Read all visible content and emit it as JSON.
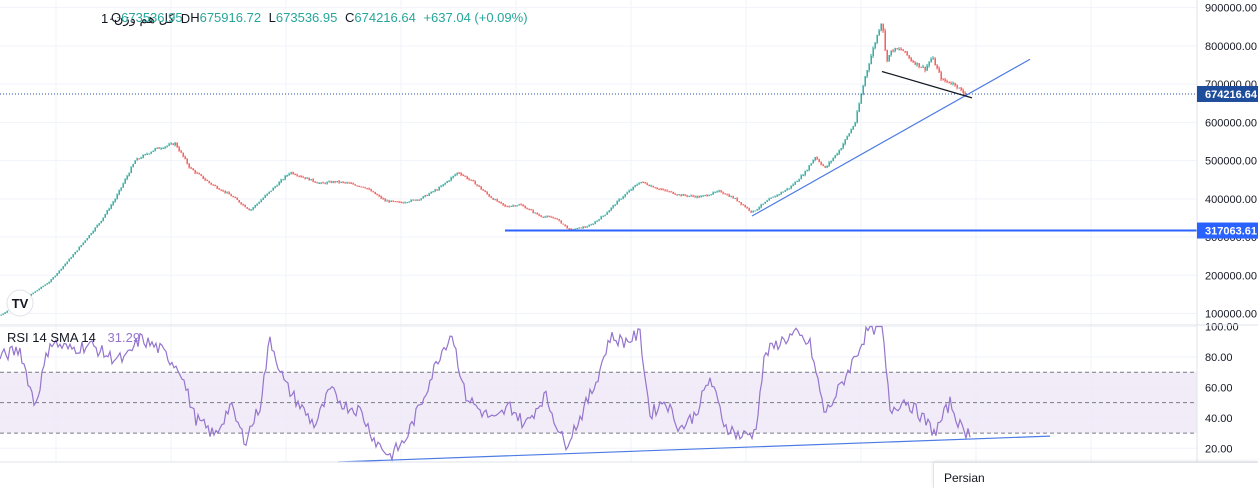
{
  "header": {
    "symbol": "کل هم وزن",
    "sep": "·",
    "interval": "1D",
    "o_label": "O",
    "o_value": "673536.95",
    "h_label": "H",
    "h_value": "675916.72",
    "l_label": "L",
    "l_value": "673536.95",
    "c_label": "C",
    "c_value": "674216.64",
    "change": "+637.04 (+0.09%)"
  },
  "rsi_header": {
    "label": "RSI 14 SMA 14",
    "value": "31.29"
  },
  "popup": {
    "label": "Persian"
  },
  "logo": {
    "text": "TV"
  },
  "colors": {
    "up": "#26a69a",
    "down": "#ef5350",
    "trend": "#4c7be4",
    "rsi": "#9575cd",
    "band": "#ede7f6",
    "last_label": "#1e4d9b",
    "level_label": "#2962ff"
  },
  "chart_data": [
    {
      "type": "line",
      "subtype": "candlestick",
      "y_axis_ticks": [
        "900000.00",
        "800000.00",
        "700000.00",
        "600000.00",
        "500000.00",
        "400000.00",
        "300000.00",
        "200000.00",
        "100000.00"
      ],
      "ylim": [
        70000,
        920000
      ],
      "last_price": 674216.64,
      "last_price_label": "674216.64",
      "horizontal_level": 317063.61,
      "horizontal_level_label": "317063.61",
      "anchors": [
        [
          0,
          95000
        ],
        [
          20,
          130000
        ],
        [
          50,
          185000
        ],
        [
          75,
          260000
        ],
        [
          100,
          340000
        ],
        [
          115,
          400000
        ],
        [
          135,
          500000
        ],
        [
          155,
          530000
        ],
        [
          175,
          545000
        ],
        [
          190,
          480000
        ],
        [
          210,
          440000
        ],
        [
          230,
          410000
        ],
        [
          250,
          370000
        ],
        [
          270,
          420000
        ],
        [
          290,
          470000
        ],
        [
          305,
          455000
        ],
        [
          320,
          440000
        ],
        [
          335,
          445000
        ],
        [
          350,
          440000
        ],
        [
          365,
          430000
        ],
        [
          385,
          395000
        ],
        [
          400,
          390000
        ],
        [
          420,
          400000
        ],
        [
          440,
          430000
        ],
        [
          458,
          470000
        ],
        [
          475,
          440000
        ],
        [
          490,
          405000
        ],
        [
          505,
          380000
        ],
        [
          520,
          385000
        ],
        [
          540,
          355000
        ],
        [
          555,
          350000
        ],
        [
          570,
          318000
        ],
        [
          590,
          330000
        ],
        [
          605,
          360000
        ],
        [
          620,
          400000
        ],
        [
          640,
          445000
        ],
        [
          660,
          425000
        ],
        [
          680,
          410000
        ],
        [
          700,
          405000
        ],
        [
          720,
          420000
        ],
        [
          735,
          400000
        ],
        [
          752,
          365000
        ],
        [
          770,
          400000
        ],
        [
          790,
          430000
        ],
        [
          805,
          470000
        ],
        [
          815,
          510000
        ],
        [
          825,
          480000
        ],
        [
          840,
          530000
        ],
        [
          855,
          600000
        ],
        [
          865,
          720000
        ],
        [
          875,
          810000
        ],
        [
          882,
          870000
        ],
        [
          886,
          760000
        ],
        [
          892,
          790000
        ],
        [
          902,
          790000
        ],
        [
          912,
          760000
        ],
        [
          925,
          740000
        ],
        [
          932,
          770000
        ],
        [
          942,
          710000
        ],
        [
          955,
          700000
        ],
        [
          962,
          680000
        ],
        [
          966,
          674000
        ]
      ],
      "trendlines": [
        {
          "x1": 752,
          "y1": 355000,
          "x2": 1030,
          "y2": 765000
        },
        {
          "x1": 882,
          "y1": 733000,
          "x2": 972,
          "y2": 664000
        }
      ]
    },
    {
      "type": "line",
      "subtype": "rsi",
      "name": "RSI 14 SMA 14",
      "y_axis_ticks": [
        "100.00",
        "80.00",
        "60.00",
        "40.00",
        "20.00"
      ],
      "ylim": [
        11,
        101
      ],
      "bands": [
        30,
        50,
        70
      ],
      "anchors": [
        [
          0,
          80
        ],
        [
          20,
          85
        ],
        [
          35,
          48
        ],
        [
          50,
          90
        ],
        [
          70,
          85
        ],
        [
          90,
          88
        ],
        [
          110,
          80
        ],
        [
          125,
          78
        ],
        [
          140,
          92
        ],
        [
          160,
          85
        ],
        [
          180,
          72
        ],
        [
          195,
          40
        ],
        [
          215,
          28
        ],
        [
          230,
          48
        ],
        [
          245,
          25
        ],
        [
          260,
          48
        ],
        [
          270,
          92
        ],
        [
          285,
          62
        ],
        [
          300,
          48
        ],
        [
          315,
          35
        ],
        [
          330,
          58
        ],
        [
          345,
          48
        ],
        [
          360,
          45
        ],
        [
          375,
          25
        ],
        [
          390,
          15
        ],
        [
          405,
          25
        ],
        [
          420,
          48
        ],
        [
          440,
          82
        ],
        [
          452,
          96
        ],
        [
          465,
          55
        ],
        [
          480,
          45
        ],
        [
          495,
          38
        ],
        [
          510,
          48
        ],
        [
          525,
          35
        ],
        [
          545,
          55
        ],
        [
          565,
          22
        ],
        [
          580,
          40
        ],
        [
          595,
          62
        ],
        [
          610,
          93
        ],
        [
          625,
          90
        ],
        [
          640,
          95
        ],
        [
          650,
          42
        ],
        [
          665,
          52
        ],
        [
          680,
          33
        ],
        [
          695,
          42
        ],
        [
          710,
          66
        ],
        [
          725,
          35
        ],
        [
          740,
          28
        ],
        [
          755,
          30
        ],
        [
          765,
          82
        ],
        [
          780,
          90
        ],
        [
          795,
          95
        ],
        [
          810,
          88
        ],
        [
          825,
          42
        ],
        [
          840,
          60
        ],
        [
          855,
          80
        ],
        [
          868,
          98
        ],
        [
          882,
          100
        ],
        [
          890,
          45
        ],
        [
          905,
          52
        ],
        [
          920,
          42
        ],
        [
          935,
          30
        ],
        [
          950,
          50
        ],
        [
          962,
          32
        ],
        [
          970,
          30
        ]
      ],
      "trendline": {
        "x1": 338,
        "y1": 11,
        "x2": 1050,
        "y2": 28
      }
    }
  ]
}
